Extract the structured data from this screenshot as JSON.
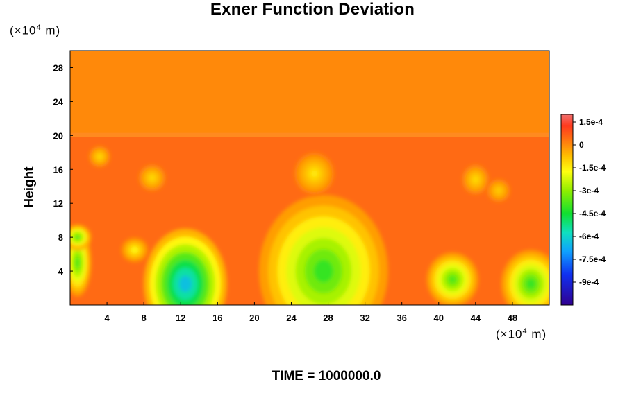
{
  "chart_data": {
    "type": "heatmap",
    "title": "Exner Function Deviation",
    "ylabel": "Height",
    "y_unit": "(×10^4 m)",
    "x_unit": "(×10^4 m)",
    "footer": "TIME = 1000000.0",
    "xlim": [
      0,
      52
    ],
    "ylim": [
      0,
      30
    ],
    "x_ticks": [
      4,
      8,
      12,
      16,
      20,
      24,
      28,
      32,
      36,
      40,
      44,
      48
    ],
    "y_ticks": [
      4,
      8,
      12,
      16,
      20,
      24,
      28
    ],
    "colorbar": {
      "range": [
        -0.00105,
        0.0002
      ],
      "tick_values": [
        0.00015,
        0,
        -0.00015,
        -0.0003,
        -0.00045,
        -0.0006,
        -0.00075,
        -0.0009
      ],
      "tick_labels": [
        "1.5e-4",
        "0",
        "-1.5e-4",
        "-3e-4",
        "-4.5e-4",
        "-6e-4",
        "-7.5e-4",
        "-9e-4"
      ]
    },
    "field": {
      "layers": [
        {
          "y_range": [
            20,
            30
          ],
          "value": 3e-05
        },
        {
          "y_range": [
            0,
            20
          ],
          "value": 7e-05
        }
      ],
      "features": [
        {
          "x": 12.5,
          "y": 2.5,
          "value": -0.00065,
          "rx": 4.5,
          "ry": 6.5
        },
        {
          "x": 27.5,
          "y": 4,
          "value": -0.00038,
          "rx": 7,
          "ry": 9
        },
        {
          "x": 41.5,
          "y": 3,
          "value": -0.00035,
          "rx": 2.8,
          "ry": 3.2
        },
        {
          "x": 50,
          "y": 2.5,
          "value": -0.00038,
          "rx": 3.2,
          "ry": 4
        },
        {
          "x": 0.8,
          "y": 5,
          "value": -0.00035,
          "rx": 1.5,
          "ry": 4
        },
        {
          "x": 0.8,
          "y": 8,
          "value": -0.00035,
          "rx": 1.5,
          "ry": 1.5
        },
        {
          "x": 26.5,
          "y": 15.5,
          "value": -0.00012,
          "rx": 2.2,
          "ry": 2.5
        },
        {
          "x": 3.2,
          "y": 17.5,
          "value": -0.0001,
          "rx": 1.2,
          "ry": 1.3
        },
        {
          "x": 8.9,
          "y": 15,
          "value": -0.0001,
          "rx": 1.5,
          "ry": 1.6
        },
        {
          "x": 44,
          "y": 14.8,
          "value": -0.0001,
          "rx": 1.5,
          "ry": 1.8
        },
        {
          "x": 46.5,
          "y": 13.5,
          "value": -8e-05,
          "rx": 1.3,
          "ry": 1.4
        },
        {
          "x": 7,
          "y": 6.5,
          "value": -0.00015,
          "rx": 1.5,
          "ry": 1.5
        }
      ]
    }
  }
}
